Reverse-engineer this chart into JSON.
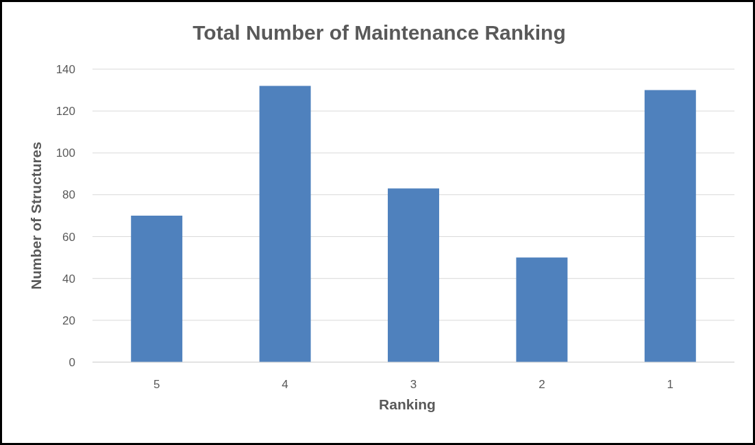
{
  "chart_data": {
    "type": "bar",
    "title": "Total Number of Maintenance Ranking",
    "xlabel": "Ranking",
    "ylabel": "Number of Structures",
    "categories": [
      "5",
      "4",
      "3",
      "2",
      "1"
    ],
    "values": [
      70,
      132,
      83,
      50,
      130
    ],
    "color": "#4f81bd",
    "ylim": [
      0,
      140
    ],
    "yticks": [
      0,
      20,
      40,
      60,
      80,
      100,
      120,
      140
    ],
    "grid": "y"
  }
}
